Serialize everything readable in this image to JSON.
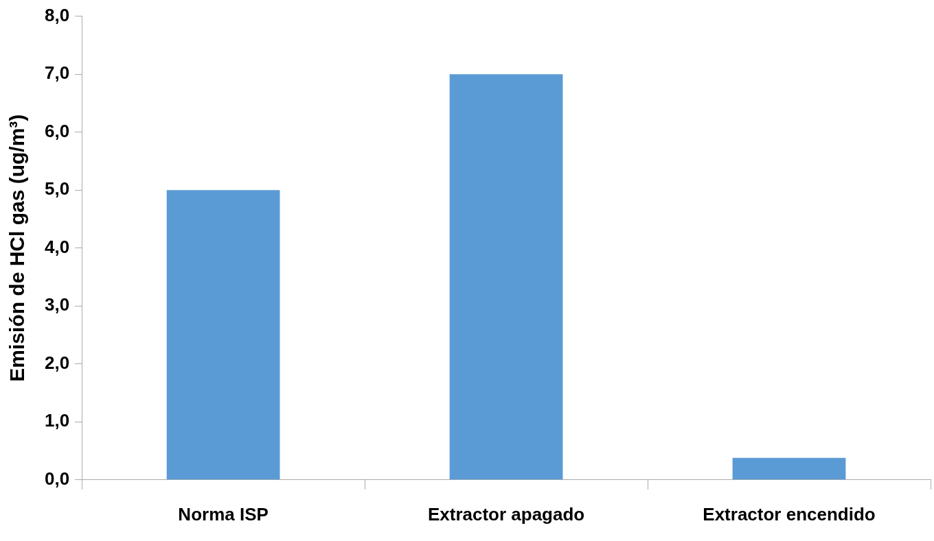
{
  "chart_data": {
    "type": "bar",
    "ylabel": "Emisión de HCl gas (ug/m³)",
    "categories": [
      "Norma ISP",
      "Extractor apagado",
      "Extractor encendido"
    ],
    "values": [
      5.0,
      7.0,
      0.38
    ],
    "color": "#5b9bd5",
    "ylim": [
      0,
      8
    ],
    "yticks": [
      {
        "value": 0,
        "label": "0,0"
      },
      {
        "value": 1,
        "label": "1,0"
      },
      {
        "value": 2,
        "label": "2,0"
      },
      {
        "value": 3,
        "label": "3,0"
      },
      {
        "value": 4,
        "label": "4,0"
      },
      {
        "value": 5,
        "label": "5,0"
      },
      {
        "value": 6,
        "label": "6,0"
      },
      {
        "value": 7,
        "label": "7,0"
      },
      {
        "value": 8,
        "label": "8,0"
      }
    ],
    "grid": false,
    "legend": false
  }
}
